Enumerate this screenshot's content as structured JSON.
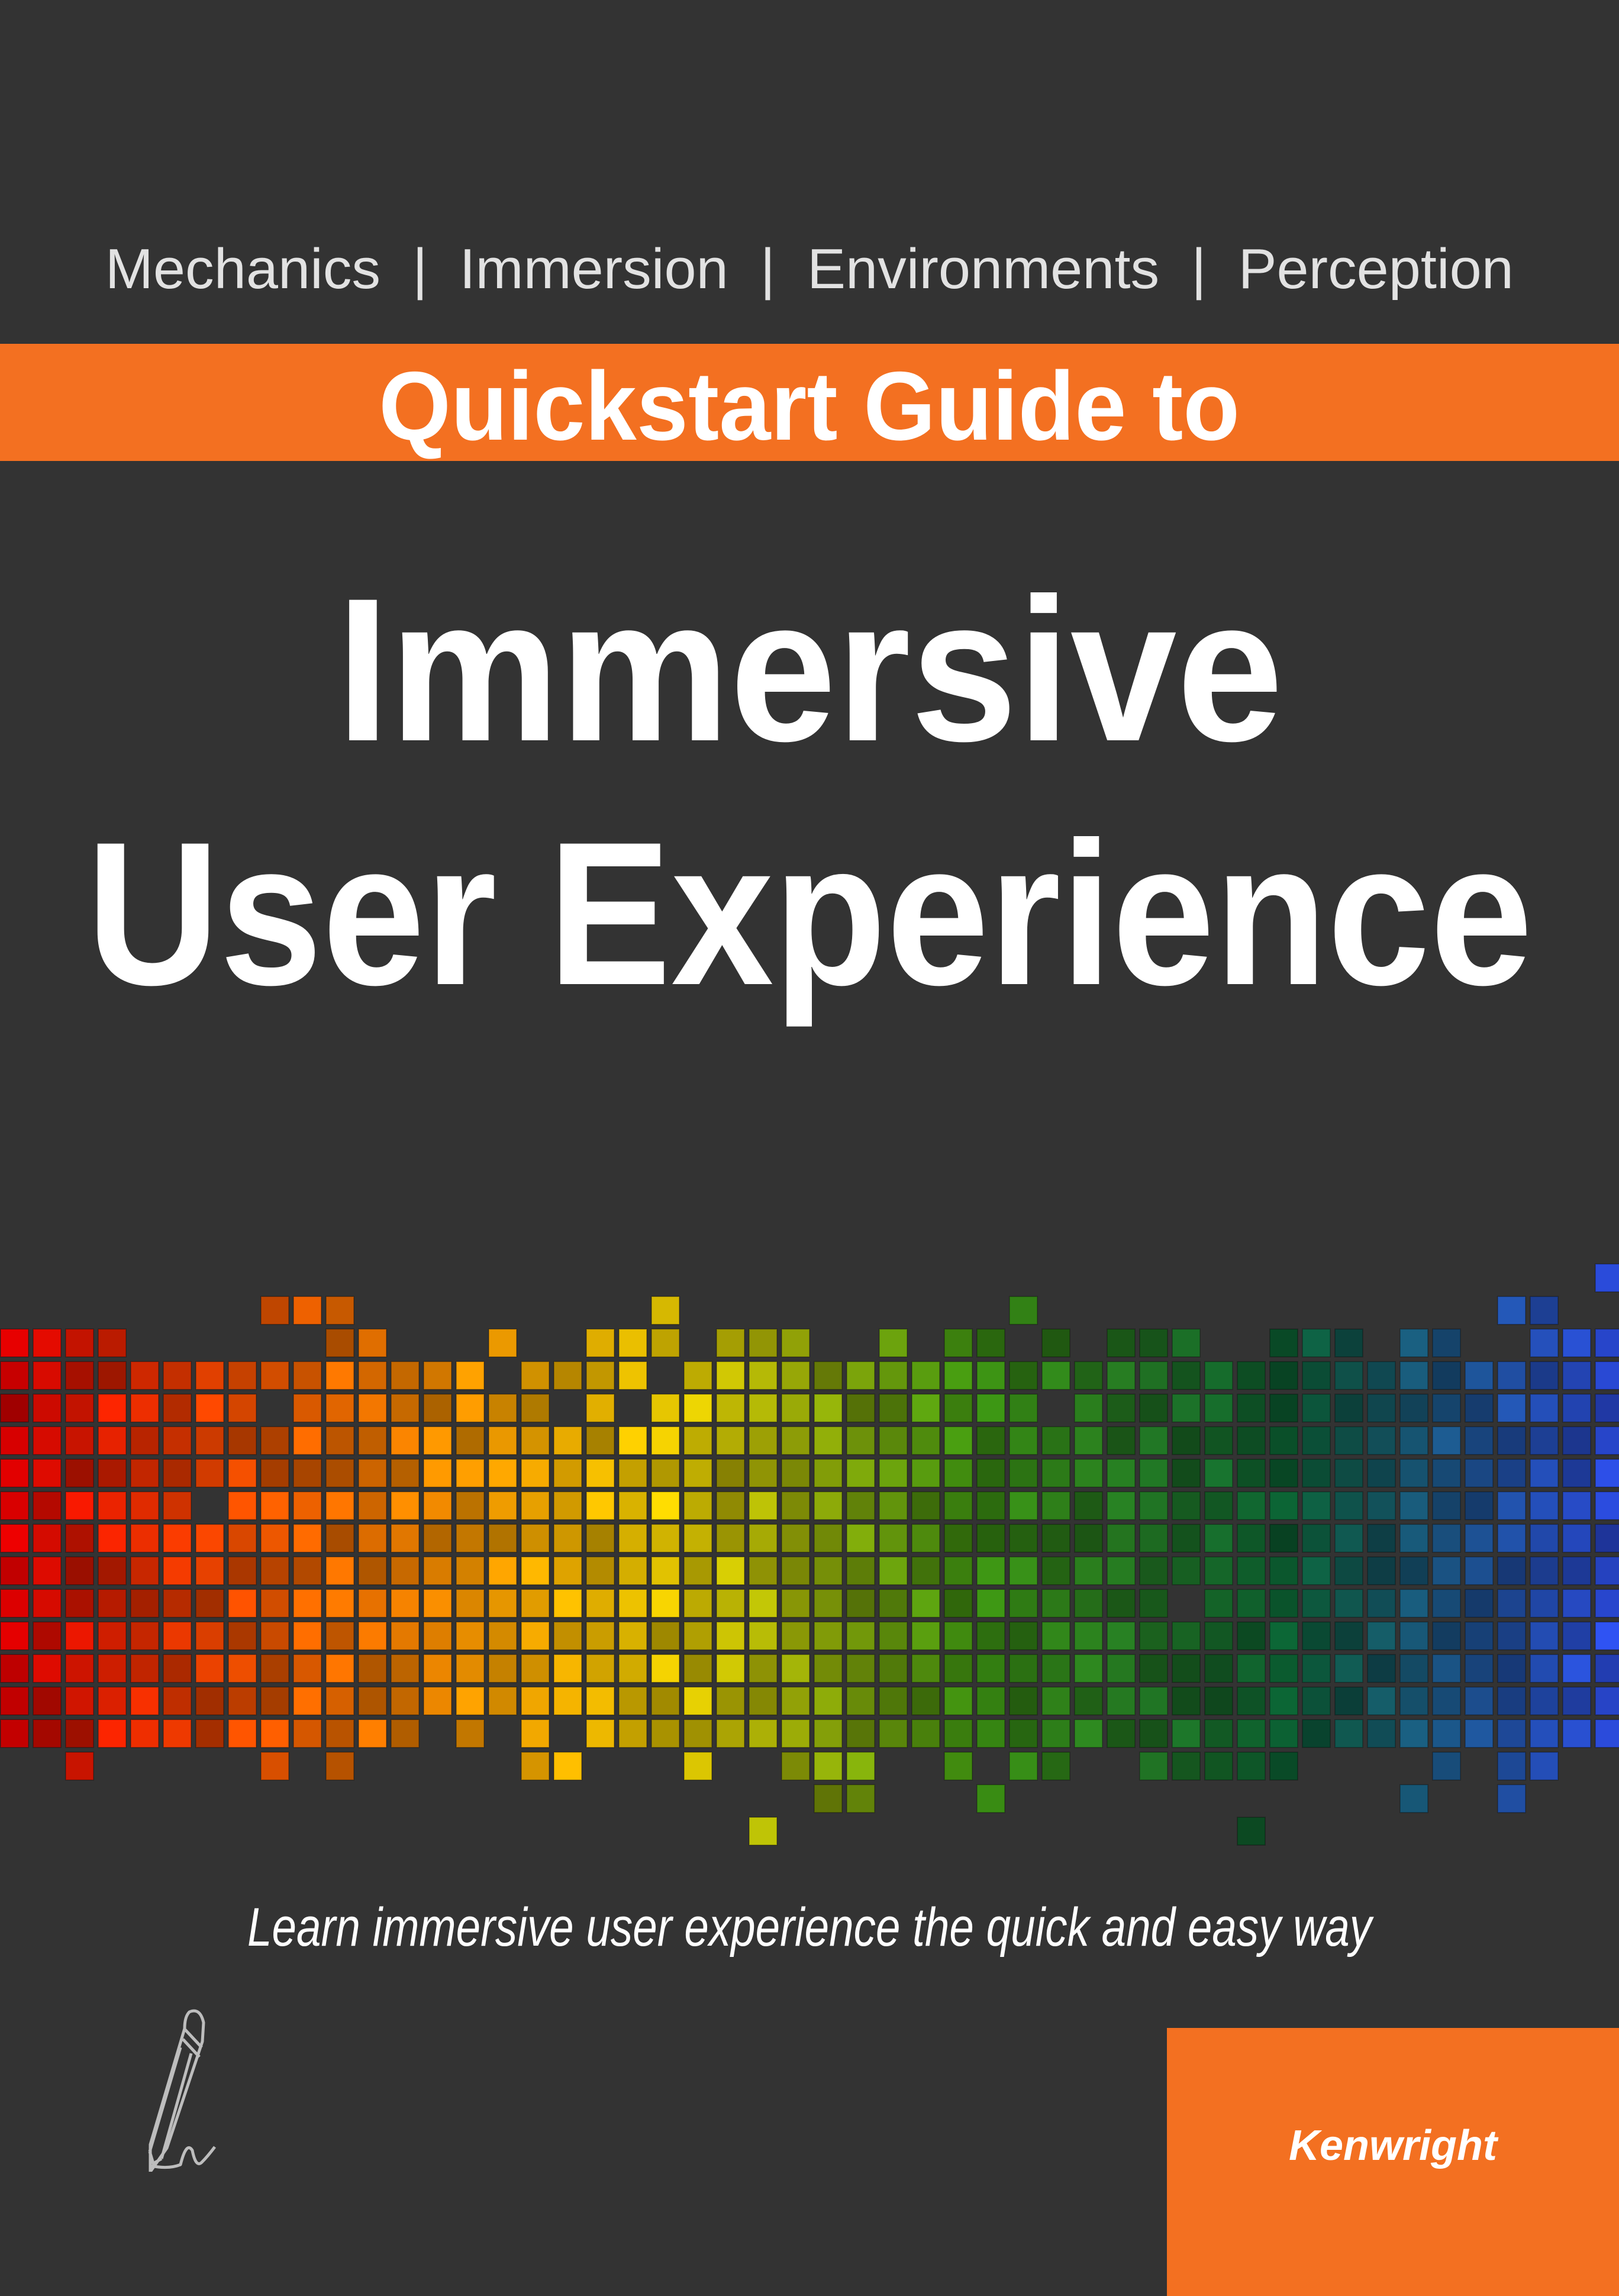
{
  "cover": {
    "topics": "Mechanics  |  Immersion  |  Environments  |  Perception",
    "band_text": "Quickstart Guide to",
    "title_line1": "Immersive",
    "title_line2": "User Experience",
    "tagline": "Learn immersive user experience the quick and easy way",
    "author": "Kenwright",
    "pencil_icon": "pencil-signature-icon"
  },
  "colors": {
    "background": "#333333",
    "accent_orange": "#f37021",
    "topics_text": "#e2e2e2",
    "mosaic_gradient": [
      "#d40000",
      "#f06a00",
      "#e8c400",
      "#3a8a10",
      "#0a5a30",
      "#2a4ad8"
    ]
  }
}
